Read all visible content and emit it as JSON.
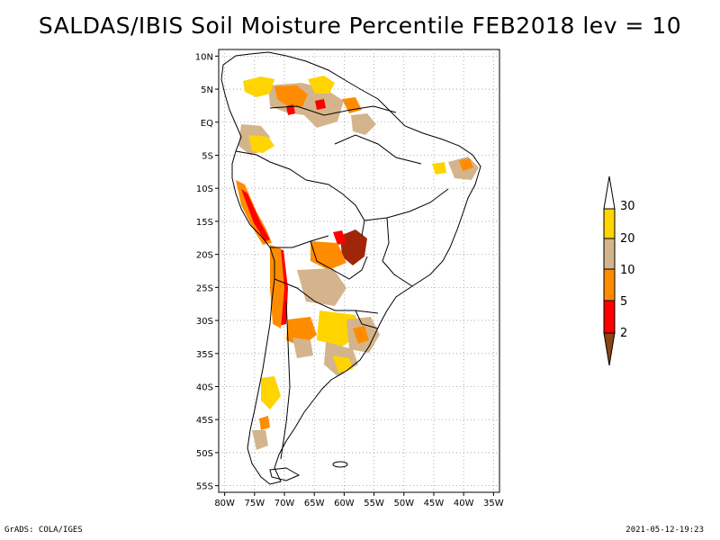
{
  "title": "SALDAS/IBIS Soil Moisture Percentile FEB2018 lev = 10",
  "map": {
    "lat_ticks": [
      "10N",
      "5N",
      "EQ",
      "5S",
      "10S",
      "15S",
      "20S",
      "25S",
      "30S",
      "35S",
      "40S",
      "45S",
      "50S",
      "55S"
    ],
    "lon_ticks": [
      "80W",
      "75W",
      "70W",
      "65W",
      "60W",
      "55W",
      "50W",
      "45W",
      "40W",
      "35W"
    ],
    "lat_range": [
      11,
      -56
    ],
    "lon_range": [
      -81,
      -34
    ],
    "gridlines": "dotted"
  },
  "legend": {
    "labels": [
      "30",
      "20",
      "10",
      "5",
      "2"
    ],
    "bins": [
      {
        "range": ">30",
        "color": "#ffffff"
      },
      {
        "range": "20-30",
        "color": "#ffd400"
      },
      {
        "range": "10-20",
        "color": "#d4b48c"
      },
      {
        "range": "5-10",
        "color": "#ff8c00"
      },
      {
        "range": "2-5",
        "color": "#ff0000"
      },
      {
        "range": "<2",
        "color": "#8b4513"
      }
    ]
  },
  "footer": {
    "left": "GrADS: COLA/IGES",
    "right": "2021-05-12-19:23"
  }
}
